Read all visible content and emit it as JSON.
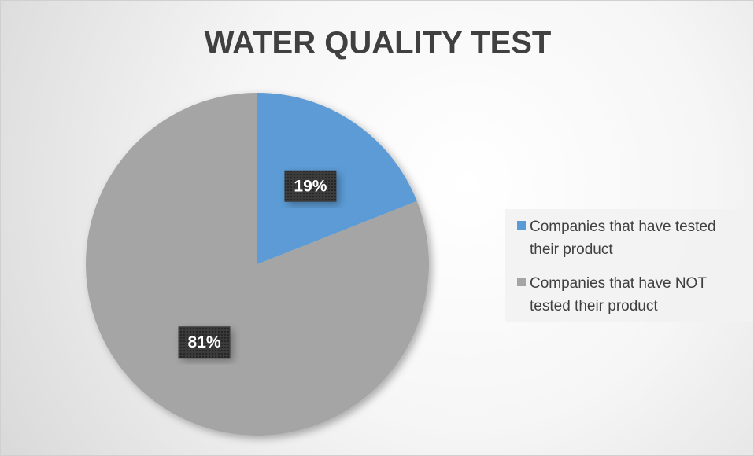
{
  "chart_data": {
    "type": "pie",
    "title": "WATER QUALITY TEST",
    "categories": [
      "Companies that have tested their product",
      "Companies that have NOT tested their product"
    ],
    "values": [
      19,
      81
    ],
    "value_labels": [
      "19%",
      "81%"
    ],
    "colors": [
      "#5b9bd5",
      "#a5a5a5"
    ],
    "legend": "right"
  }
}
